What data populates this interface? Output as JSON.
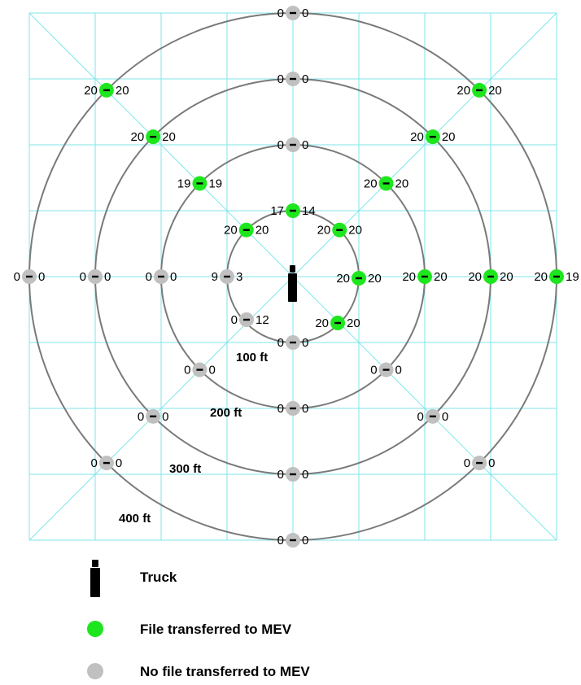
{
  "colors": {
    "grid": "#7fe6ea",
    "ring": "#7a7a7a",
    "transferred": "#1ee61e",
    "not_transferred": "#c0c0c0",
    "truck": "#000000",
    "separator": "#000000"
  },
  "ring_labels": [
    "100 ft",
    "200 ft",
    "300 ft",
    "400 ft"
  ],
  "points": [
    {
      "id": "r100-n",
      "left": "17",
      "right": "14",
      "status": "transferred"
    },
    {
      "id": "r100-ne",
      "left": "20",
      "right": "20",
      "status": "transferred"
    },
    {
      "id": "r100-e",
      "left": "20",
      "right": "20",
      "status": "transferred"
    },
    {
      "id": "r100-se",
      "left": "20",
      "right": "20",
      "status": "transferred"
    },
    {
      "id": "r100-s",
      "left": "0",
      "right": "0",
      "status": "not_transferred"
    },
    {
      "id": "r100-sw",
      "left": "0",
      "right": "12",
      "status": "not_transferred"
    },
    {
      "id": "r100-w",
      "left": "9",
      "right": "3",
      "status": "not_transferred"
    },
    {
      "id": "r100-nw",
      "left": "20",
      "right": "20",
      "status": "transferred"
    },
    {
      "id": "r200-n",
      "left": "0",
      "right": "0",
      "status": "not_transferred"
    },
    {
      "id": "r200-ne",
      "left": "20",
      "right": "20",
      "status": "transferred"
    },
    {
      "id": "r200-e",
      "left": "20",
      "right": "20",
      "status": "transferred"
    },
    {
      "id": "r200-se",
      "left": "0",
      "right": "0",
      "status": "not_transferred"
    },
    {
      "id": "r200-s",
      "left": "0",
      "right": "0",
      "status": "not_transferred"
    },
    {
      "id": "r200-sw",
      "left": "0",
      "right": "0",
      "status": "not_transferred"
    },
    {
      "id": "r200-w",
      "left": "0",
      "right": "0",
      "status": "not_transferred"
    },
    {
      "id": "r200-nw",
      "left": "19",
      "right": "19",
      "status": "transferred"
    },
    {
      "id": "r300-n",
      "left": "0",
      "right": "0",
      "status": "not_transferred"
    },
    {
      "id": "r300-ne",
      "left": "20",
      "right": "20",
      "status": "transferred"
    },
    {
      "id": "r300-e",
      "left": "20",
      "right": "20",
      "status": "transferred"
    },
    {
      "id": "r300-se",
      "left": "0",
      "right": "0",
      "status": "not_transferred"
    },
    {
      "id": "r300-s",
      "left": "0",
      "right": "0",
      "status": "not_transferred"
    },
    {
      "id": "r300-sw",
      "left": "0",
      "right": "0",
      "status": "not_transferred"
    },
    {
      "id": "r300-w",
      "left": "0",
      "right": "0",
      "status": "not_transferred"
    },
    {
      "id": "r300-nw",
      "left": "20",
      "right": "20",
      "status": "transferred"
    },
    {
      "id": "r400-n",
      "left": "0",
      "right": "0",
      "status": "not_transferred"
    },
    {
      "id": "r400-ne",
      "left": "20",
      "right": "20",
      "status": "transferred"
    },
    {
      "id": "r400-e",
      "left": "20",
      "right": "19",
      "status": "transferred"
    },
    {
      "id": "r400-se",
      "left": "0",
      "right": "0",
      "status": "not_transferred"
    },
    {
      "id": "r400-s",
      "left": "0",
      "right": "0",
      "status": "not_transferred"
    },
    {
      "id": "r400-sw",
      "left": "0",
      "right": "0",
      "status": "not_transferred"
    },
    {
      "id": "r400-w",
      "left": "0",
      "right": "0",
      "status": "not_transferred"
    },
    {
      "id": "r400-nw",
      "left": "20",
      "right": "20",
      "status": "transferred"
    }
  ],
  "legend": {
    "truck": "Truck",
    "transferred": "File transferred to MEV",
    "not_transferred": "No file transferred to MEV"
  }
}
